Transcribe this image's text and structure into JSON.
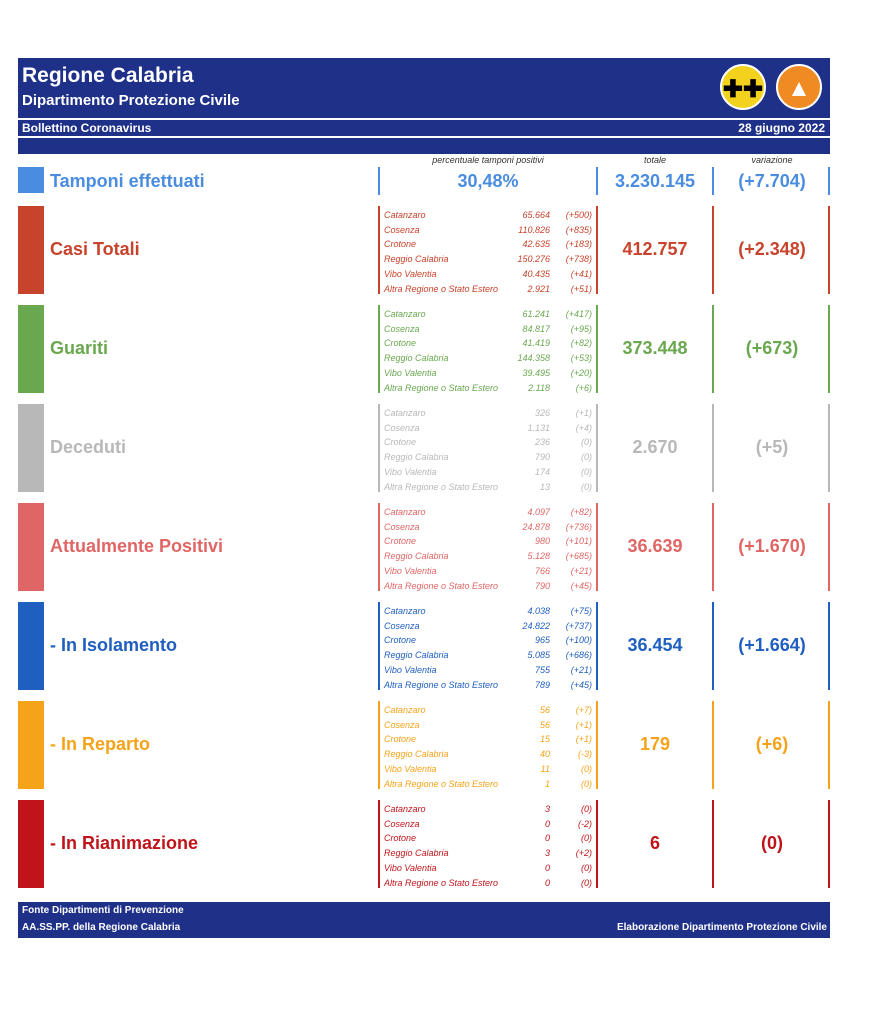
{
  "header": {
    "title": "Regione Calabria",
    "subtitle": "Dipartimento Protezione Civile",
    "bulletin": "Bollettino Coronavirus",
    "date": "28 giugno 2022"
  },
  "columns": {
    "percent": "percentuale tamponi positivi",
    "total": "totale",
    "change": "variazione"
  },
  "tamponi": {
    "label": "Tamponi effettuati",
    "percent": "30,48%",
    "total": "3.230.145",
    "change": "(+7.704)",
    "color": "#4a8de0"
  },
  "categories": [
    {
      "label": "Casi Totali",
      "color": "#c8432b",
      "total": "412.757",
      "change": "(+2.348)",
      "rows": [
        {
          "name": "Catanzaro",
          "value": "65.664",
          "change": "(+500)"
        },
        {
          "name": "Cosenza",
          "value": "110.826",
          "change": "(+835)"
        },
        {
          "name": "Crotone",
          "value": "42.635",
          "change": "(+183)"
        },
        {
          "name": "Reggio Calabria",
          "value": "150.276",
          "change": "(+738)"
        },
        {
          "name": "Vibo Valentia",
          "value": "40.435",
          "change": "(+41)"
        },
        {
          "name": "Altra Regione o Stato Estero",
          "value": "2.921",
          "change": "(+51)"
        }
      ]
    },
    {
      "label": "Guariti",
      "color": "#6aa84f",
      "total": "373.448",
      "change": "(+673)",
      "rows": [
        {
          "name": "Catanzaro",
          "value": "61.241",
          "change": "(+417)"
        },
        {
          "name": "Cosenza",
          "value": "84.817",
          "change": "(+95)"
        },
        {
          "name": "Crotone",
          "value": "41.419",
          "change": "(+82)"
        },
        {
          "name": "Reggio Calabria",
          "value": "144.358",
          "change": "(+53)"
        },
        {
          "name": "Vibo Valentia",
          "value": "39.495",
          "change": "(+20)"
        },
        {
          "name": "Altra Regione o Stato Estero",
          "value": "2.118",
          "change": "(+6)"
        }
      ]
    },
    {
      "label": "Deceduti",
      "color": "#b8b8b8",
      "total": "2.670",
      "change": "(+5)",
      "rows": [
        {
          "name": "Catanzaro",
          "value": "326",
          "change": "(+1)"
        },
        {
          "name": "Cosenza",
          "value": "1.131",
          "change": "(+4)"
        },
        {
          "name": "Crotone",
          "value": "236",
          "change": "(0)"
        },
        {
          "name": "Reggio Calabria",
          "value": "790",
          "change": "(0)"
        },
        {
          "name": "Vibo Valentia",
          "value": "174",
          "change": "(0)"
        },
        {
          "name": "Altra Regione o Stato Estero",
          "value": "13",
          "change": "(0)"
        }
      ]
    },
    {
      "label": "Attualmente Positivi",
      "color": "#e06666",
      "total": "36.639",
      "change": "(+1.670)",
      "rows": [
        {
          "name": "Catanzaro",
          "value": "4.097",
          "change": "(+82)"
        },
        {
          "name": "Cosenza",
          "value": "24.878",
          "change": "(+736)"
        },
        {
          "name": "Crotone",
          "value": "980",
          "change": "(+101)"
        },
        {
          "name": "Reggio Calabria",
          "value": "5.128",
          "change": "(+685)"
        },
        {
          "name": "Vibo Valentia",
          "value": "766",
          "change": "(+21)"
        },
        {
          "name": "Altra Regione o Stato Estero",
          "value": "790",
          "change": "(+45)"
        }
      ]
    },
    {
      "label": "- In Isolamento",
      "color": "#1f5fbf",
      "total": "36.454",
      "change": "(+1.664)",
      "rows": [
        {
          "name": "Catanzaro",
          "value": "4.038",
          "change": "(+75)"
        },
        {
          "name": "Cosenza",
          "value": "24.822",
          "change": "(+737)"
        },
        {
          "name": "Crotone",
          "value": "965",
          "change": "(+100)"
        },
        {
          "name": "Reggio Calabria",
          "value": "5.085",
          "change": "(+686)"
        },
        {
          "name": "Vibo Valentia",
          "value": "755",
          "change": "(+21)"
        },
        {
          "name": "Altra Regione o Stato Estero",
          "value": "789",
          "change": "(+45)"
        }
      ]
    },
    {
      "label": "- In Reparto",
      "color": "#f5a31a",
      "total": "179",
      "change": "(+6)",
      "rows": [
        {
          "name": "Catanzaro",
          "value": "56",
          "change": "(+7)"
        },
        {
          "name": "Cosenza",
          "value": "56",
          "change": "(+1)"
        },
        {
          "name": "Crotone",
          "value": "15",
          "change": "(+1)"
        },
        {
          "name": "Reggio Calabria",
          "value": "40",
          "change": "(-3)"
        },
        {
          "name": "Vibo Valentia",
          "value": "11",
          "change": "(0)"
        },
        {
          "name": "Altra Regione o Stato Estero",
          "value": "1",
          "change": "(0)"
        }
      ]
    },
    {
      "label": "- In Rianimazione",
      "color": "#c0141a",
      "total": "6",
      "change": "(0)",
      "rows": [
        {
          "name": "Catanzaro",
          "value": "3",
          "change": "(0)"
        },
        {
          "name": "Cosenza",
          "value": "0",
          "change": "(-2)"
        },
        {
          "name": "Crotone",
          "value": "0",
          "change": "(0)"
        },
        {
          "name": "Reggio Calabria",
          "value": "3",
          "change": "(+2)"
        },
        {
          "name": "Vibo Valentia",
          "value": "0",
          "change": "(0)"
        },
        {
          "name": "Altra Regione o Stato Estero",
          "value": "0",
          "change": "(0)"
        }
      ]
    }
  ],
  "footer": {
    "line1": "Fonte Dipartimenti di Prevenzione",
    "line2": "AA.SS.PP.  della Regione Calabria",
    "credit": "Elaborazione Dipartimento Protezione Civile"
  },
  "colors": {
    "brand": "#1f3089"
  }
}
